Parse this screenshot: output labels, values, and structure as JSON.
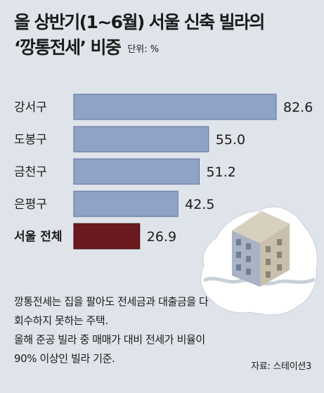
{
  "title": {
    "line1": "올 상반기(1~6월) 서울 신축 빌라의",
    "line2": "‘깡통전세’ 비중",
    "unit": "단위: %"
  },
  "chart_data": {
    "type": "bar",
    "orientation": "horizontal",
    "categories": [
      "강서구",
      "도봉구",
      "금천구",
      "은평구",
      "서울 전체"
    ],
    "values": [
      82.6,
      55.0,
      51.2,
      42.5,
      26.9
    ],
    "value_labels": [
      "82.6",
      "55.0",
      "51.2",
      "42.5",
      "26.9"
    ],
    "xlim": [
      0,
      82.6
    ],
    "grid": false,
    "colors": {
      "bar": "#8fa3c6",
      "bar_highlight": "#6a1a1e",
      "bar_border": "#5c6f95",
      "background": "#dfe4ea"
    }
  },
  "note": {
    "lines": [
      "깡통전세는 집을 팔아도 전세금과 대출금을 다",
      "회수하지 못하는 주택.",
      "올해 준공 빌라 중 매매가 대비 전세가 비율이",
      "90% 이상인 빌라 기준."
    ]
  },
  "source": "자료: 스테이션3",
  "illustration": {
    "icons": [
      "building-icon",
      "seoul-map-icon"
    ]
  }
}
